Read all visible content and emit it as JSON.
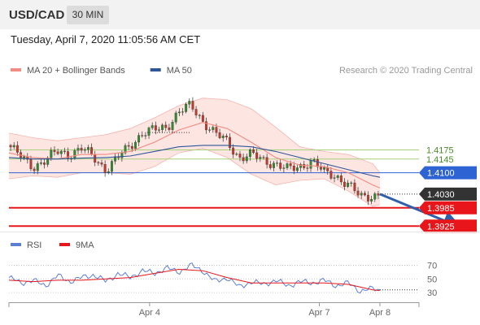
{
  "header": {
    "symbol": "USD/CAD",
    "timeframe": "30 MIN",
    "datetime": "Tuesday, April 7, 2020 11:05:56 AM CET"
  },
  "colors": {
    "bollinger": "#f28b82",
    "bollinger_fill": "#fde0dd",
    "ma50": "#2f5597",
    "resistance": "#a7d07a",
    "resistance_label": "#4a8b2a",
    "pivot": "#2e63d4",
    "support": "#e8161b",
    "current": "#333333",
    "candle_up": "#2e8b2e",
    "candle_down": "#c0392b",
    "arrow": "#2e5fa8",
    "rsi": "#5b7fd6",
    "rsi_ma": "#e8161b"
  },
  "chart_data": [
    {
      "type": "candlestick",
      "legend": [
        {
          "name": "MA 20 + Bollinger Bands",
          "color": "#f28b82"
        },
        {
          "name": "MA 50",
          "color": "#2f5597"
        }
      ],
      "legend_placement": "top-left",
      "credit": "Research © 2020 Trading Central",
      "ylim": [
        1.3915,
        1.4395
      ],
      "levels": [
        {
          "value": 1.4175,
          "label": "1.4175",
          "kind": "resistance"
        },
        {
          "value": 1.4145,
          "label": "1.4145",
          "kind": "resistance"
        },
        {
          "value": 1.41,
          "label": "1.4100",
          "kind": "pivot"
        },
        {
          "value": 1.403,
          "label": "1.4030",
          "kind": "current"
        },
        {
          "value": 1.3985,
          "label": "1.3985",
          "kind": "support"
        },
        {
          "value": 1.3925,
          "label": "1.3925",
          "kind": "support"
        }
      ],
      "price_path": [
        [
          0,
          1.419
        ],
        [
          5,
          1.415
        ],
        [
          10,
          1.412
        ],
        [
          15,
          1.414
        ],
        [
          20,
          1.417
        ],
        [
          25,
          1.416
        ],
        [
          30,
          1.418
        ],
        [
          35,
          1.415
        ],
        [
          40,
          1.411
        ],
        [
          45,
          1.415
        ],
        [
          50,
          1.419
        ],
        [
          55,
          1.423
        ],
        [
          60,
          1.424
        ],
        [
          65,
          1.425
        ],
        [
          70,
          1.43
        ],
        [
          75,
          1.432
        ],
        [
          80,
          1.427
        ],
        [
          85,
          1.423
        ],
        [
          90,
          1.42
        ],
        [
          95,
          1.415
        ],
        [
          100,
          1.416
        ],
        [
          105,
          1.414
        ],
        [
          110,
          1.413
        ],
        [
          115,
          1.411
        ],
        [
          120,
          1.412
        ],
        [
          125,
          1.414
        ],
        [
          130,
          1.41
        ],
        [
          135,
          1.409
        ],
        [
          140,
          1.406
        ],
        [
          145,
          1.402
        ],
        [
          150,
          1.4025
        ],
        [
          153,
          1.403
        ]
      ],
      "ma20": [
        [
          0,
          1.4165
        ],
        [
          10,
          1.415
        ],
        [
          20,
          1.4145
        ],
        [
          30,
          1.416
        ],
        [
          40,
          1.416
        ],
        [
          50,
          1.417
        ],
        [
          60,
          1.42
        ],
        [
          70,
          1.424
        ],
        [
          80,
          1.4265
        ],
        [
          90,
          1.4245
        ],
        [
          100,
          1.42
        ],
        [
          110,
          1.415
        ],
        [
          120,
          1.4125
        ],
        [
          130,
          1.412
        ],
        [
          140,
          1.41
        ],
        [
          150,
          1.406
        ],
        [
          153,
          1.405
        ]
      ],
      "bb_upper": [
        [
          0,
          1.423
        ],
        [
          10,
          1.4215
        ],
        [
          20,
          1.4205
        ],
        [
          30,
          1.4215
        ],
        [
          40,
          1.4225
        ],
        [
          50,
          1.4245
        ],
        [
          60,
          1.428
        ],
        [
          70,
          1.432
        ],
        [
          80,
          1.4345
        ],
        [
          90,
          1.434
        ],
        [
          100,
          1.431
        ],
        [
          110,
          1.425
        ],
        [
          120,
          1.4185
        ],
        [
          130,
          1.417
        ],
        [
          140,
          1.416
        ],
        [
          150,
          1.413
        ],
        [
          153,
          1.41
        ]
      ],
      "bb_lower": [
        [
          0,
          1.408
        ],
        [
          10,
          1.409
        ],
        [
          20,
          1.4085
        ],
        [
          30,
          1.41
        ],
        [
          40,
          1.41
        ],
        [
          50,
          1.4095
        ],
        [
          60,
          1.412
        ],
        [
          70,
          1.4165
        ],
        [
          80,
          1.418
        ],
        [
          90,
          1.415
        ],
        [
          100,
          1.4095
        ],
        [
          110,
          1.406
        ],
        [
          120,
          1.4075
        ],
        [
          130,
          1.408
        ],
        [
          140,
          1.404
        ],
        [
          150,
          1.399
        ],
        [
          153,
          1.3995
        ]
      ],
      "ma50": [
        [
          0,
          1.415
        ],
        [
          10,
          1.4145
        ],
        [
          20,
          1.4145
        ],
        [
          30,
          1.4148
        ],
        [
          40,
          1.415
        ],
        [
          50,
          1.4155
        ],
        [
          60,
          1.417
        ],
        [
          70,
          1.4185
        ],
        [
          80,
          1.419
        ],
        [
          90,
          1.419
        ],
        [
          100,
          1.4185
        ],
        [
          110,
          1.417
        ],
        [
          120,
          1.415
        ],
        [
          130,
          1.413
        ],
        [
          140,
          1.411
        ],
        [
          150,
          1.409
        ],
        [
          153,
          1.4085
        ]
      ],
      "dotted_segments": [
        {
          "from": [
            57,
            1.4232
          ],
          "to": [
            75,
            1.4232
          ]
        },
        {
          "from": [
            153,
            1.403
          ],
          "to": [
            172,
            1.403
          ]
        }
      ],
      "projection_arrow": {
        "from": [
          153,
          1.403
        ],
        "to": [
          170,
          1.3928
        ]
      }
    },
    {
      "type": "line",
      "legend": [
        {
          "name": "RSI",
          "color": "#5b7fd6"
        },
        {
          "name": "9MA",
          "color": "#e8161b"
        }
      ],
      "legend_placement": "top-left",
      "ylim": [
        23,
        80
      ],
      "yticks": [
        30,
        50,
        70
      ],
      "x_ticks": [
        {
          "x": 58,
          "label": "Apr 4"
        },
        {
          "x": 128,
          "label": "Apr 7"
        },
        {
          "x": 153,
          "label": "Apr 8"
        }
      ],
      "rsi": [
        [
          0,
          52
        ],
        [
          5,
          44
        ],
        [
          10,
          48
        ],
        [
          15,
          40
        ],
        [
          20,
          55
        ],
        [
          25,
          46
        ],
        [
          30,
          52
        ],
        [
          35,
          56
        ],
        [
          40,
          46
        ],
        [
          45,
          58
        ],
        [
          50,
          52
        ],
        [
          55,
          62
        ],
        [
          60,
          58
        ],
        [
          65,
          66
        ],
        [
          70,
          60
        ],
        [
          75,
          70
        ],
        [
          80,
          62
        ],
        [
          85,
          46
        ],
        [
          90,
          52
        ],
        [
          95,
          38
        ],
        [
          100,
          46
        ],
        [
          105,
          42
        ],
        [
          110,
          48
        ],
        [
          115,
          40
        ],
        [
          120,
          46
        ],
        [
          125,
          44
        ],
        [
          130,
          48
        ],
        [
          135,
          40
        ],
        [
          140,
          44
        ],
        [
          145,
          32
        ],
        [
          150,
          36
        ],
        [
          153,
          34
        ]
      ],
      "rsi_ma": [
        [
          0,
          48
        ],
        [
          10,
          46
        ],
        [
          20,
          48
        ],
        [
          30,
          48
        ],
        [
          40,
          50
        ],
        [
          50,
          52
        ],
        [
          60,
          58
        ],
        [
          70,
          64
        ],
        [
          80,
          62
        ],
        [
          90,
          52
        ],
        [
          100,
          44
        ],
        [
          110,
          44
        ],
        [
          120,
          44
        ],
        [
          130,
          44
        ],
        [
          140,
          42
        ],
        [
          150,
          34
        ],
        [
          153,
          33
        ]
      ],
      "dotted_segments": [
        {
          "from": [
            153,
            34
          ],
          "to": [
            172,
            34
          ]
        }
      ]
    }
  ]
}
